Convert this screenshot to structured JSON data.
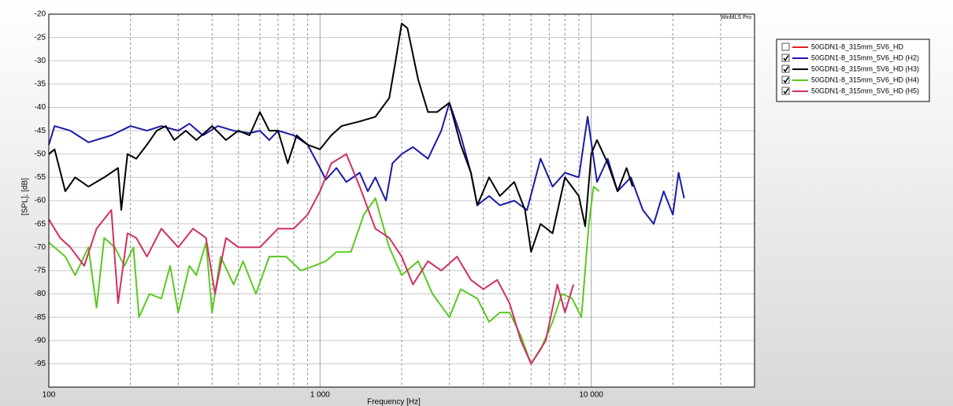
{
  "chart_data": {
    "type": "line",
    "watermark": "WinMLS Pro",
    "x_label": "Frequency [Hz]",
    "y_label": "[SPL], [dB]",
    "x_log": true,
    "xlim": [
      100,
      40000
    ],
    "xticks": [
      100,
      {
        "value": 1000,
        "label": "1 000"
      },
      {
        "value": 10000,
        "label": "10 000"
      }
    ],
    "x_minor_grid": [
      200,
      300,
      400,
      500,
      600,
      700,
      800,
      900,
      2000,
      3000,
      4000,
      5000,
      6000,
      7000,
      8000,
      9000,
      20000,
      30000,
      40000
    ],
    "ylim": [
      -100,
      -20
    ],
    "yticks": [
      -20,
      -25,
      -30,
      -35,
      -40,
      -45,
      -50,
      -55,
      -60,
      -65,
      -70,
      -75,
      -80,
      -85,
      -90,
      -95
    ],
    "grid": true,
    "legend": "right",
    "series": [
      {
        "name": "50GDN1-8_315mm_5V6_HD",
        "color": "#e02020",
        "checked": false
      },
      {
        "name": "50GDN1-8_315mm_5V6_HD (H2)",
        "color": "#1a1aa8",
        "checked": true,
        "x": [
          100,
          105,
          120,
          140,
          170,
          200,
          230,
          260,
          300,
          330,
          370,
          420,
          480,
          550,
          600,
          650,
          700,
          800,
          900,
          1000,
          1050,
          1150,
          1250,
          1400,
          1500,
          1600,
          1750,
          1850,
          2000,
          2200,
          2500,
          2800,
          3000,
          3300,
          3600,
          3800,
          4200,
          4600,
          5200,
          5800,
          6500,
          7200,
          8000,
          9000,
          9700,
          10500,
          11500,
          12500,
          14000,
          15500,
          17000,
          18500,
          20000,
          21000,
          22000
        ],
        "values": [
          -48,
          -44,
          -45,
          -47.5,
          -46,
          -44,
          -45,
          -44,
          -45,
          -43.5,
          -46,
          -44,
          -45,
          -45.5,
          -45,
          -47,
          -45,
          -46,
          -48,
          -53,
          -55.5,
          -53,
          -56,
          -54,
          -58,
          -55,
          -60,
          -52,
          -50,
          -48.5,
          -51,
          -45,
          -39,
          -46,
          -54,
          -61,
          -59,
          -61,
          -60,
          -62,
          -51,
          -57,
          -54,
          -55,
          -42,
          -56,
          -51,
          -58,
          -55,
          -62,
          -65,
          -58,
          -63,
          -54,
          -59.5
        ]
      },
      {
        "name": "50GDN1-8_315mm_5V6_HD (H3)",
        "color": "#000000",
        "checked": true,
        "x": [
          100,
          105,
          115,
          125,
          140,
          160,
          180,
          185,
          195,
          210,
          230,
          250,
          270,
          290,
          320,
          350,
          400,
          450,
          500,
          550,
          600,
          650,
          700,
          760,
          820,
          900,
          1000,
          1100,
          1200,
          1400,
          1600,
          1800,
          1900,
          2000,
          2100,
          2300,
          2500,
          2700,
          3000,
          3300,
          3600,
          3800,
          4200,
          4600,
          5200,
          5700,
          6000,
          6500,
          7200,
          8000,
          9000,
          9500,
          10000,
          10500,
          11500,
          12500,
          13500,
          14200
        ],
        "values": [
          -50,
          -49,
          -58,
          -55,
          -57,
          -55,
          -53,
          -62,
          -50,
          -51,
          -48,
          -45,
          -44,
          -47,
          -45,
          -47,
          -44,
          -47,
          -45,
          -46,
          -41,
          -45,
          -45,
          -52,
          -46,
          -48,
          -49,
          -46,
          -44,
          -43,
          -42,
          -38,
          -30,
          -22,
          -23,
          -34,
          -41,
          -41,
          -39,
          -48,
          -54,
          -61,
          -55,
          -59,
          -56,
          -62,
          -71,
          -65,
          -67,
          -55,
          -59,
          -65.5,
          -50,
          -47,
          -52,
          -58,
          -53,
          -57
        ]
      },
      {
        "name": "50GDN1-8_315mm_5V6_HD (H4)",
        "color": "#5ac822",
        "checked": true,
        "x": [
          100,
          115,
          125,
          140,
          150,
          160,
          175,
          190,
          205,
          215,
          235,
          260,
          280,
          300,
          330,
          350,
          380,
          400,
          430,
          480,
          520,
          580,
          650,
          750,
          850,
          950,
          1050,
          1150,
          1300,
          1450,
          1600,
          1800,
          2000,
          2300,
          2600,
          3000,
          3300,
          3800,
          4200,
          4600,
          5000,
          5500,
          6000,
          6500,
          7200,
          7800,
          8500,
          9200,
          9800,
          10200,
          10700
        ],
        "values": [
          -69,
          -72,
          -76,
          -70,
          -83,
          -68,
          -70,
          -74,
          -70,
          -85,
          -80,
          -81,
          -74,
          -84,
          -74,
          -76,
          -69,
          -84,
          -72,
          -78,
          -73,
          -80,
          -72,
          -72,
          -75,
          -74,
          -73,
          -71,
          -71,
          -63,
          -59.5,
          -70,
          -76,
          -73,
          -80,
          -85,
          -79,
          -81,
          -86,
          -84,
          -84,
          -89,
          -95,
          -92,
          -86,
          -80,
          -81,
          -85,
          -65,
          -57,
          -58
        ]
      },
      {
        "name": "50GDN1-8_315mm_5V6_HD (H5)",
        "color": "#d03060",
        "checked": true,
        "x": [
          100,
          110,
          120,
          135,
          150,
          170,
          180,
          195,
          210,
          230,
          260,
          300,
          340,
          380,
          410,
          450,
          500,
          600,
          700,
          800,
          900,
          1000,
          1100,
          1250,
          1400,
          1600,
          1800,
          2000,
          2200,
          2500,
          2800,
          3200,
          3600,
          4000,
          4500,
          5000,
          5500,
          6000,
          6800,
          7500,
          8000,
          8600
        ],
        "values": [
          -64,
          -68,
          -70,
          -74,
          -66,
          -62,
          -82,
          -67,
          -68,
          -72,
          -66,
          -70,
          -66,
          -68,
          -80,
          -68,
          -70,
          -70,
          -66,
          -66,
          -63,
          -58,
          -52,
          -50,
          -57,
          -66,
          -68,
          -72,
          -78,
          -73,
          -75,
          -72,
          -77,
          -79,
          -77,
          -82,
          -90,
          -95,
          -90,
          -78,
          -84,
          -78
        ]
      }
    ]
  }
}
